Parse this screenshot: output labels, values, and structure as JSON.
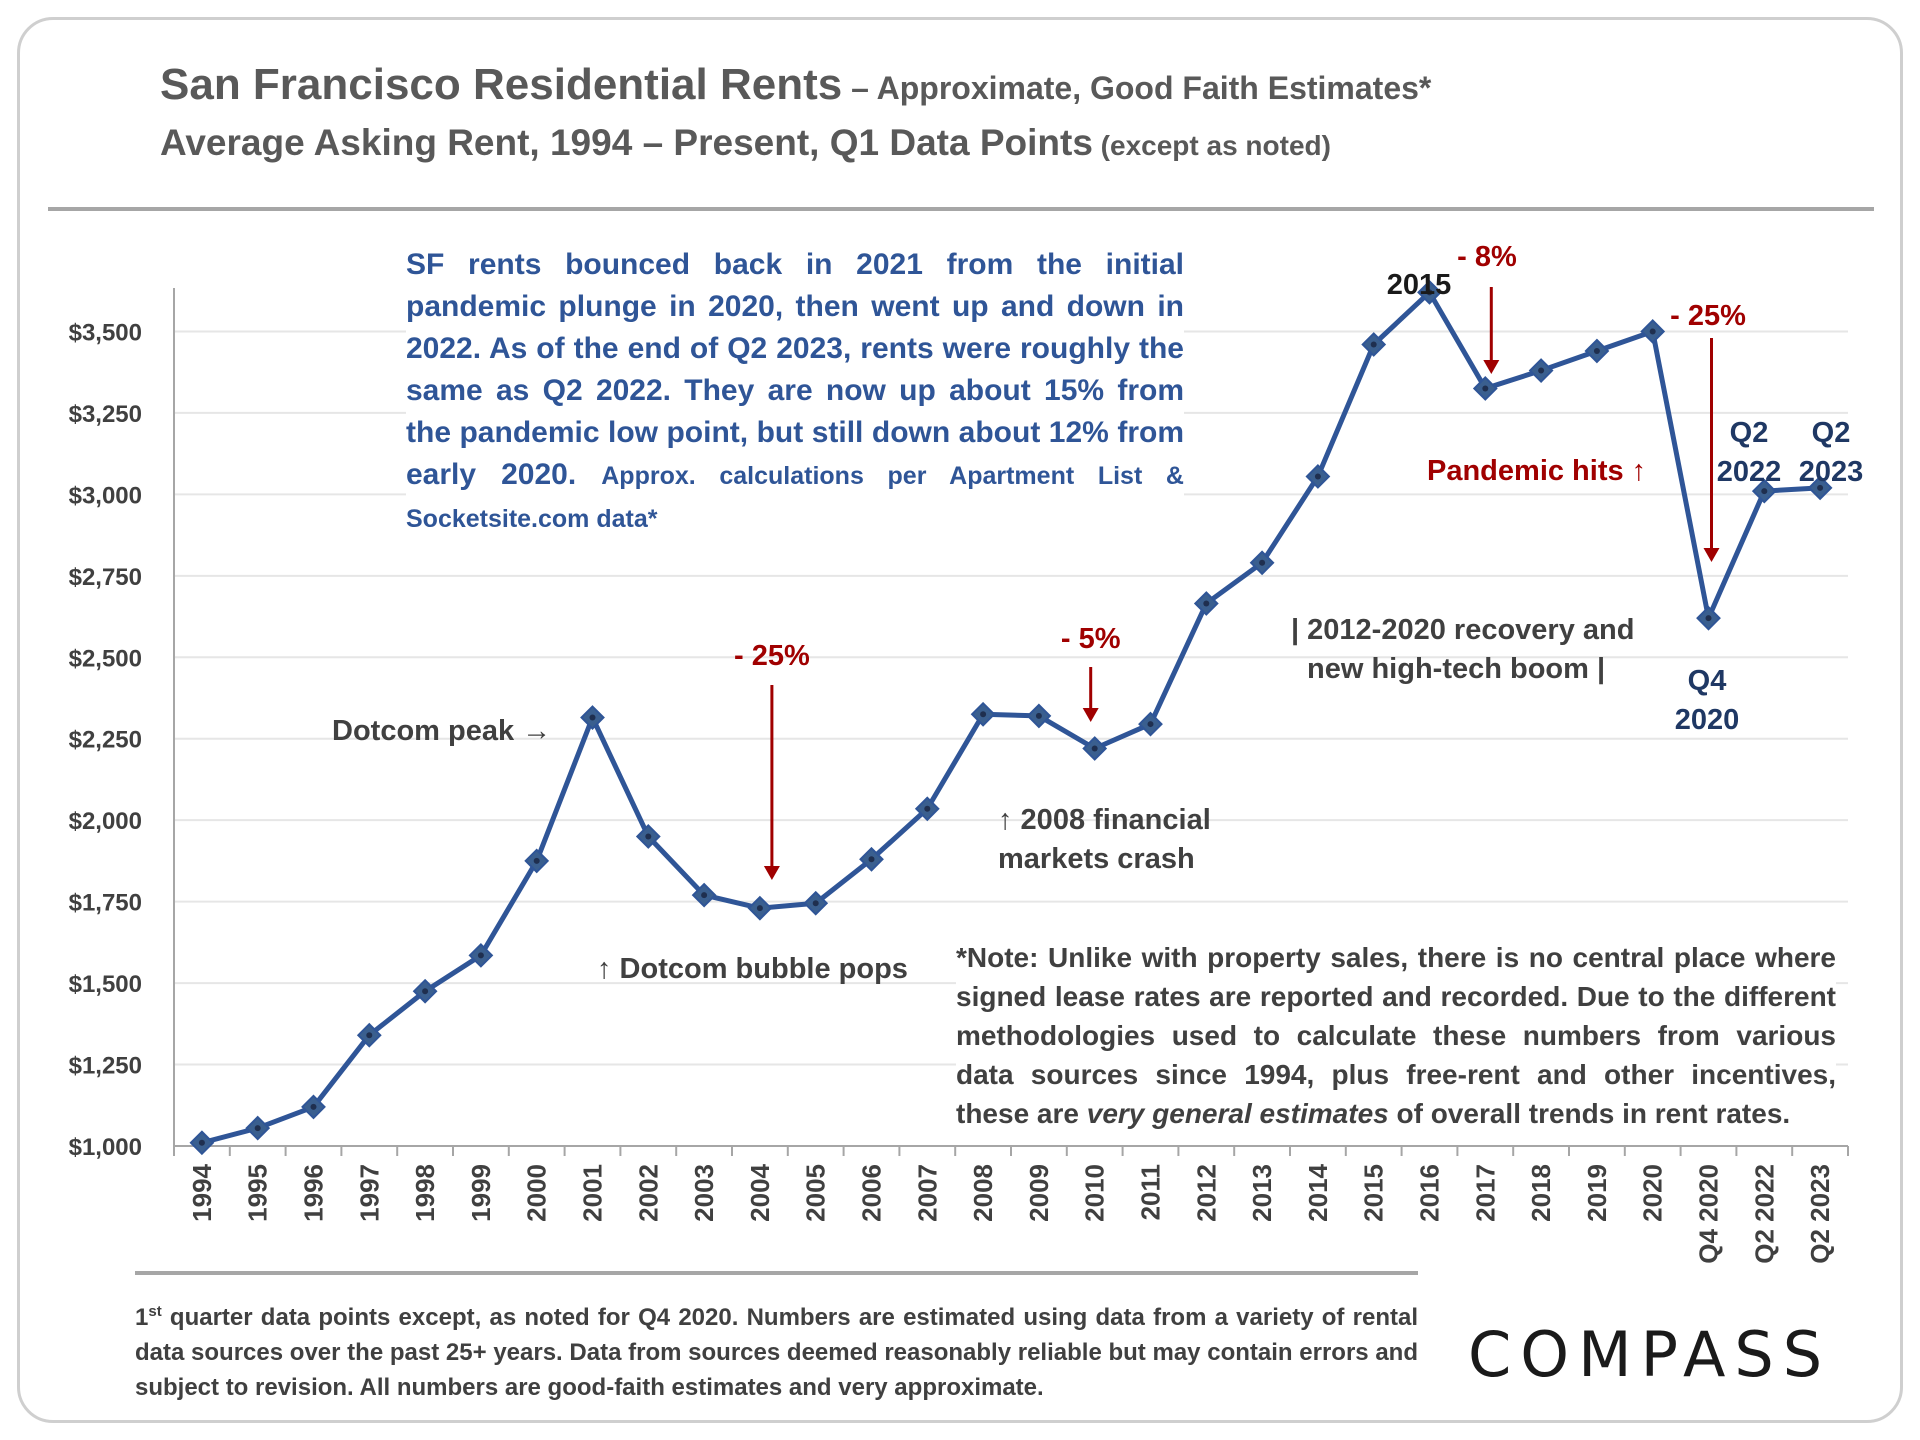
{
  "header": {
    "title": "San Francisco Residential Rents",
    "title_suffix": " – Approximate, Good Faith Estimates*",
    "subtitle": "Average Asking Rent, 1994 – Present, Q1 Data Points",
    "subtitle_suffix": " (except as noted)"
  },
  "summary_note": {
    "main": "SF rents bounced back in 2021 from the initial pandemic plunge in 2020, then went up and down in 2022. As of the end of Q2 2023, rents were roughly the same as Q2 2022. They are now up about 15% from the pandemic low point, but still down about 12% from early 2020. ",
    "source": "Approx. calculations per Apartment List & Socketsite.com data*"
  },
  "methodology_note": {
    "part1": "*Note: Unlike with property sales, there is no central place where signed lease rates are reported and recorded. Due to the different methodologies used to calculate these numbers from various data sources since 1994, plus free-rent and other incentives, these are ",
    "emphasis": "very general estimates",
    "part2": " of overall trends in rent rates."
  },
  "footer": {
    "ordinal": "1",
    "superscript": "st",
    "text": " quarter data points except, as noted for Q4 2020. Numbers are estimated using data from a variety of rental data sources over the past 25+ years. Data from sources deemed reasonably reliable but may contain errors and subject to revision. All numbers are good-faith estimates and very approximate."
  },
  "logo": {
    "text": "COMPASS"
  },
  "colors": {
    "line": "#2f5597",
    "marker": "#3a5f8f",
    "marker_center": "#1f2f4f",
    "annotation_red": "#a00000",
    "text_gray": "#404040",
    "grid": "#e6e6e6"
  },
  "chart_data": {
    "type": "line",
    "categories": [
      "1994",
      "1995",
      "1996",
      "1997",
      "1998",
      "1999",
      "2000",
      "2001",
      "2002",
      "2003",
      "2004",
      "2005",
      "2006",
      "2007",
      "2008",
      "2009",
      "2010",
      "2011",
      "2012",
      "2013",
      "2014",
      "2015",
      "2016",
      "2017",
      "2018",
      "2019",
      "2020",
      "Q4 2020",
      "Q2 2022",
      "Q2 2023"
    ],
    "series": [
      {
        "values": [
          1010,
          1055,
          1120,
          1340,
          1475,
          1585,
          1875,
          2315,
          1950,
          1770,
          1730,
          1745,
          1880,
          2035,
          2325,
          2320,
          2220,
          2295,
          2665,
          2790,
          3055,
          3460,
          3620,
          3325,
          3380,
          3440,
          3500,
          2620,
          3010,
          3020
        ]
      }
    ],
    "ylim": [
      1000,
      3750
    ],
    "yticks": [
      1000,
      1250,
      1500,
      1750,
      2000,
      2250,
      2500,
      2750,
      3000,
      3250,
      3500
    ],
    "ytick_labels": [
      "$1,000",
      "$1,250",
      "$1,500",
      "$1,750",
      "$2,000",
      "$2,250",
      "$2,500",
      "$2,750",
      "$3,000",
      "$3,250",
      "$3,500"
    ],
    "grid": true,
    "annotations": {
      "dotcom_peak": "Dotcom peak →",
      "drop_2004": "- 25%",
      "dotcom_pops": "↑ Dotcom bubble pops",
      "drop_2010": "- 5%",
      "financial_crash_1": "↑ 2008 financial",
      "financial_crash_2": "markets crash",
      "recovery_1": "| 2012-2020 recovery and",
      "recovery_2": "new high-tech boom |",
      "label_2015": "2015",
      "drop_2017": "- 8%",
      "pandemic": "Pandemic hits ↑",
      "drop_2020": "- 25%",
      "q4_2020_a": "Q4",
      "q4_2020_b": "2020",
      "q2_2022_a": "Q2",
      "q2_2022_b": "2022",
      "q2_2023_a": "Q2",
      "q2_2023_b": "2023"
    }
  }
}
